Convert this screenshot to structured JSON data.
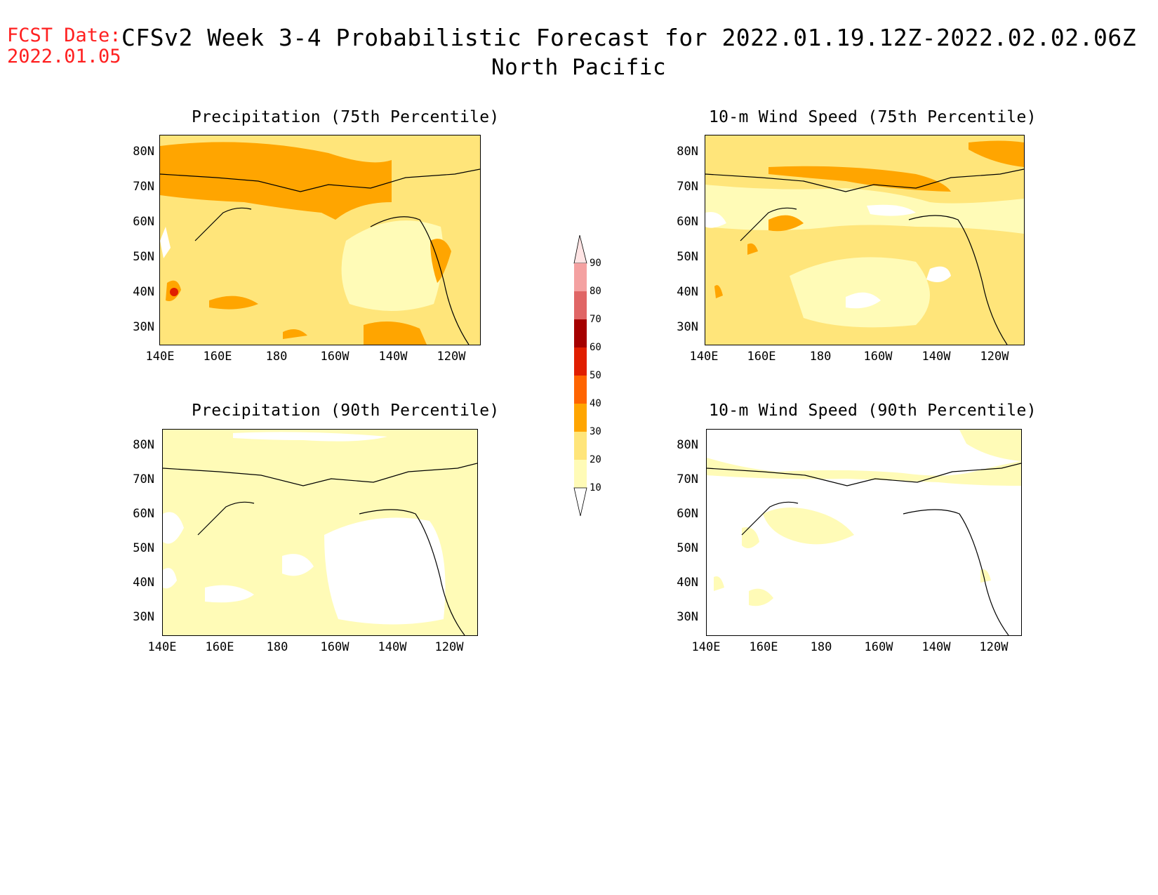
{
  "header": {
    "fcst_label": "FCST Date:",
    "fcst_date": "2022.01.05",
    "title": "CFSv2 Week 3-4 Probabilistic Forecast for 2022.01.19.12Z-2022.02.02.06Z",
    "subtitle": "North Pacific"
  },
  "panels": [
    {
      "title": "Precipitation (75th Percentile)"
    },
    {
      "title": "10-m Wind Speed (75th Percentile)"
    },
    {
      "title": "Precipitation (90th Percentile)"
    },
    {
      "title": "10-m Wind Speed (90th Percentile)"
    }
  ],
  "axes": {
    "lat_ticks": [
      "80N",
      "70N",
      "60N",
      "50N",
      "40N",
      "30N"
    ],
    "lon_ticks": [
      "140E",
      "160E",
      "180",
      "160W",
      "140W",
      "120W"
    ]
  },
  "colorbar": {
    "labels": [
      "90",
      "80",
      "70",
      "60",
      "50",
      "40",
      "30",
      "20",
      "10"
    ],
    "colors": {
      "10-20": "#fffbb7",
      "20-30": "#ffe57a",
      "30-40": "#ffa500",
      "40-50": "#ff6400",
      "50-60": "#e01e00",
      "60-70": "#a50000",
      "70-80": "#e06666",
      "80-90": "#f4a1a1",
      "90+": "#ffe4e4"
    }
  }
}
